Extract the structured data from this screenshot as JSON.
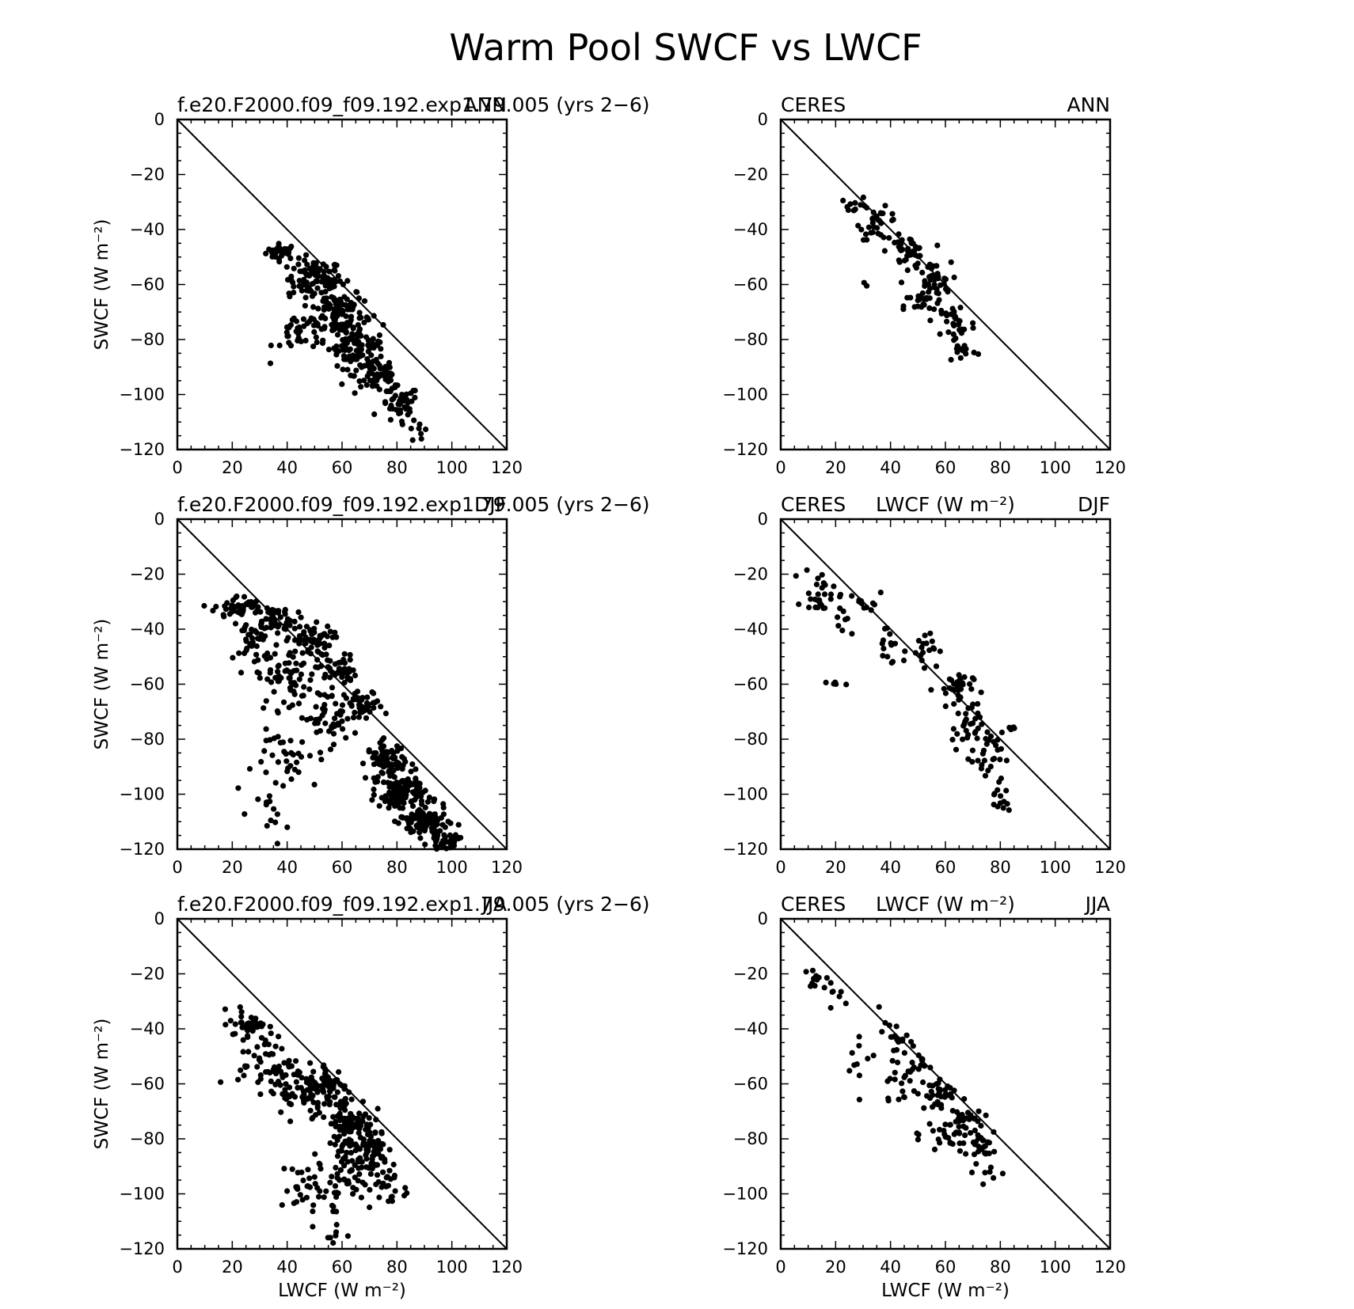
{
  "page_title": "Warm Pool SWCF vs LWCF",
  "chart_data": [
    {
      "type": "scatter",
      "left_string": "f.e20.F2000.f09_f09.192.exp1.79.005 (yrs 2−6)",
      "right_string": "ANN",
      "ylabel": "SWCF (W m⁻²)",
      "xlabel": "",
      "xlim": [
        0,
        120
      ],
      "ylim": [
        -120,
        0
      ],
      "xticks": [
        "0",
        "20",
        "40",
        "60",
        "80",
        "100",
        "120"
      ],
      "yticks": [
        "0",
        "−20",
        "−40",
        "−60",
        "−80",
        "−100",
        "−120"
      ],
      "reference_line": [
        [
          0,
          0
        ],
        [
          120,
          -120
        ]
      ],
      "clusters": [
        {
          "cx": 38,
          "cy": -48,
          "rx": 4,
          "ry": 2,
          "n": 30
        },
        {
          "cx": 50,
          "cy": -58,
          "rx": 7,
          "ry": 5,
          "n": 90
        },
        {
          "cx": 58,
          "cy": -70,
          "rx": 7,
          "ry": 7,
          "n": 110
        },
        {
          "cx": 65,
          "cy": -82,
          "rx": 7,
          "ry": 6,
          "n": 90
        },
        {
          "cx": 73,
          "cy": -93,
          "rx": 6,
          "ry": 5,
          "n": 60
        },
        {
          "cx": 81,
          "cy": -104,
          "rx": 5,
          "ry": 5,
          "n": 45
        },
        {
          "cx": 45,
          "cy": -78,
          "rx": 7,
          "ry": 6,
          "n": 35
        },
        {
          "cx": 88,
          "cy": -113,
          "rx": 3,
          "ry": 3,
          "n": 8
        }
      ]
    },
    {
      "type": "scatter",
      "left_string": "CERES",
      "right_string": "ANN",
      "ylabel": "",
      "xlabel": "",
      "xlim": [
        0,
        120
      ],
      "ylim": [
        -120,
        0
      ],
      "xticks": [
        "0",
        "20",
        "40",
        "60",
        "80",
        "100",
        "120"
      ],
      "yticks": [
        "0",
        "−20",
        "−40",
        "−60",
        "−80",
        "−100",
        "−120"
      ],
      "reference_line": [
        [
          0,
          0
        ],
        [
          120,
          -120
        ]
      ],
      "clusters": [
        {
          "cx": 27,
          "cy": -31,
          "rx": 4,
          "ry": 2,
          "n": 12
        },
        {
          "cx": 36,
          "cy": -38,
          "rx": 5,
          "ry": 4,
          "n": 30
        },
        {
          "cx": 46,
          "cy": -48,
          "rx": 5,
          "ry": 4,
          "n": 40
        },
        {
          "cx": 55,
          "cy": -59,
          "rx": 5,
          "ry": 5,
          "n": 40
        },
        {
          "cx": 52,
          "cy": -68,
          "rx": 5,
          "ry": 4,
          "n": 20
        },
        {
          "cx": 64,
          "cy": -74,
          "rx": 5,
          "ry": 6,
          "n": 30
        },
        {
          "cx": 66,
          "cy": -84,
          "rx": 4,
          "ry": 3,
          "n": 12
        },
        {
          "cx": 31,
          "cy": -60,
          "rx": 1,
          "ry": 1,
          "n": 2
        }
      ]
    },
    {
      "type": "scatter",
      "left_string": "f.e20.F2000.f09_f09.192.exp1.79.005 (yrs 2−6)",
      "right_string": "DJF",
      "ylabel": "SWCF (W m⁻²)",
      "xlabel": "",
      "xlim": [
        0,
        120
      ],
      "ylim": [
        -120,
        0
      ],
      "xticks": [
        "0",
        "20",
        "40",
        "60",
        "80",
        "100",
        "120"
      ],
      "yticks": [
        "0",
        "−20",
        "−40",
        "−60",
        "−80",
        "−100",
        "−120"
      ],
      "reference_line": [
        [
          0,
          0
        ],
        [
          120,
          -120
        ]
      ],
      "clusters": [
        {
          "cx": 22,
          "cy": -32,
          "rx": 6,
          "ry": 3,
          "n": 45
        },
        {
          "cx": 35,
          "cy": -36,
          "rx": 6,
          "ry": 4,
          "n": 55
        },
        {
          "cx": 48,
          "cy": -44,
          "rx": 6,
          "ry": 4,
          "n": 55
        },
        {
          "cx": 58,
          "cy": -55,
          "rx": 5,
          "ry": 4,
          "n": 45
        },
        {
          "cx": 68,
          "cy": -68,
          "rx": 5,
          "ry": 4,
          "n": 40
        },
        {
          "cx": 28,
          "cy": -45,
          "rx": 5,
          "ry": 6,
          "n": 35
        },
        {
          "cx": 40,
          "cy": -58,
          "rx": 8,
          "ry": 8,
          "n": 60
        },
        {
          "cx": 55,
          "cy": -72,
          "rx": 8,
          "ry": 7,
          "n": 50
        },
        {
          "cx": 42,
          "cy": -88,
          "rx": 10,
          "ry": 8,
          "n": 35
        },
        {
          "cx": 35,
          "cy": -108,
          "rx": 4,
          "ry": 7,
          "n": 12
        },
        {
          "cx": 76,
          "cy": -88,
          "rx": 5,
          "ry": 5,
          "n": 80
        },
        {
          "cx": 82,
          "cy": -100,
          "rx": 6,
          "ry": 5,
          "n": 110
        },
        {
          "cx": 90,
          "cy": -110,
          "rx": 6,
          "ry": 4,
          "n": 90
        },
        {
          "cx": 97,
          "cy": -117,
          "rx": 4,
          "ry": 2,
          "n": 40
        }
      ]
    },
    {
      "type": "scatter",
      "left_string": "CERES",
      "center_string": "LWCF (W m⁻²)",
      "right_string": "DJF",
      "ylabel": "",
      "xlabel": "",
      "xlim": [
        0,
        120
      ],
      "ylim": [
        -120,
        0
      ],
      "xticks": [
        "0",
        "20",
        "40",
        "60",
        "80",
        "100",
        "120"
      ],
      "yticks": [
        "0",
        "−20",
        "−40",
        "−60",
        "−80",
        "−100",
        "−120"
      ],
      "reference_line": [
        [
          0,
          0
        ],
        [
          120,
          -120
        ]
      ],
      "clusters": [
        {
          "cx": 14,
          "cy": -26,
          "rx": 4,
          "ry": 6,
          "n": 25
        },
        {
          "cx": 22,
          "cy": -34,
          "rx": 3,
          "ry": 6,
          "n": 12
        },
        {
          "cx": 32,
          "cy": -30,
          "rx": 3,
          "ry": 4,
          "n": 10
        },
        {
          "cx": 40,
          "cy": -46,
          "rx": 5,
          "ry": 6,
          "n": 15
        },
        {
          "cx": 52,
          "cy": -46,
          "rx": 4,
          "ry": 5,
          "n": 18
        },
        {
          "cx": 63,
          "cy": -62,
          "rx": 5,
          "ry": 5,
          "n": 30
        },
        {
          "cx": 68,
          "cy": -76,
          "rx": 4,
          "ry": 6,
          "n": 30
        },
        {
          "cx": 75,
          "cy": -86,
          "rx": 4,
          "ry": 6,
          "n": 25
        },
        {
          "cx": 80,
          "cy": -100,
          "rx": 3,
          "ry": 6,
          "n": 15
        },
        {
          "cx": 18,
          "cy": -60,
          "rx": 4,
          "ry": 2,
          "n": 5
        },
        {
          "cx": 84,
          "cy": -78,
          "rx": 2,
          "ry": 2,
          "n": 4
        }
      ]
    },
    {
      "type": "scatter",
      "left_string": "f.e20.F2000.f09_f09.192.exp1.79.005 (yrs 2−6)",
      "right_string": "JJA",
      "ylabel": "SWCF (W m⁻²)",
      "xlabel": "LWCF (W m⁻²)",
      "xlim": [
        0,
        120
      ],
      "ylim": [
        -120,
        0
      ],
      "xticks": [
        "0",
        "20",
        "40",
        "60",
        "80",
        "100",
        "120"
      ],
      "yticks": [
        "0",
        "−20",
        "−40",
        "−60",
        "−80",
        "−100",
        "−120"
      ],
      "reference_line": [
        [
          0,
          0
        ],
        [
          120,
          -120
        ]
      ],
      "clusters": [
        {
          "cx": 26,
          "cy": -38,
          "rx": 5,
          "ry": 4,
          "n": 40
        },
        {
          "cx": 32,
          "cy": -52,
          "rx": 7,
          "ry": 7,
          "n": 45
        },
        {
          "cx": 44,
          "cy": -62,
          "rx": 8,
          "ry": 7,
          "n": 55
        },
        {
          "cx": 55,
          "cy": -62,
          "rx": 5,
          "ry": 7,
          "n": 70
        },
        {
          "cx": 63,
          "cy": -74,
          "rx": 6,
          "ry": 7,
          "n": 90
        },
        {
          "cx": 70,
          "cy": -84,
          "rx": 5,
          "ry": 6,
          "n": 60
        },
        {
          "cx": 62,
          "cy": -92,
          "rx": 7,
          "ry": 6,
          "n": 45
        },
        {
          "cx": 50,
          "cy": -98,
          "rx": 9,
          "ry": 8,
          "n": 40
        },
        {
          "cx": 77,
          "cy": -98,
          "rx": 5,
          "ry": 6,
          "n": 25
        },
        {
          "cx": 55,
          "cy": -114,
          "rx": 5,
          "ry": 3,
          "n": 8
        }
      ]
    },
    {
      "type": "scatter",
      "left_string": "CERES",
      "center_string": "LWCF (W m⁻²)",
      "right_string": "JJA",
      "ylabel": "",
      "xlabel": "LWCF (W m⁻²)",
      "xlim": [
        0,
        120
      ],
      "ylim": [
        -120,
        0
      ],
      "xticks": [
        "0",
        "20",
        "40",
        "60",
        "80",
        "100",
        "120"
      ],
      "yticks": [
        "0",
        "−20",
        "−40",
        "−60",
        "−80",
        "−100",
        "−120"
      ],
      "reference_line": [
        [
          0,
          0
        ],
        [
          120,
          -120
        ]
      ],
      "clusters": [
        {
          "cx": 13,
          "cy": -22,
          "rx": 3,
          "ry": 3,
          "n": 12
        },
        {
          "cx": 20,
          "cy": -30,
          "rx": 3,
          "ry": 3,
          "n": 6
        },
        {
          "cx": 28,
          "cy": -50,
          "rx": 4,
          "ry": 10,
          "n": 10
        },
        {
          "cx": 40,
          "cy": -42,
          "rx": 3,
          "ry": 4,
          "n": 12
        },
        {
          "cx": 48,
          "cy": -52,
          "rx": 5,
          "ry": 6,
          "n": 25
        },
        {
          "cx": 57,
          "cy": -64,
          "rx": 5,
          "ry": 5,
          "n": 35
        },
        {
          "cx": 66,
          "cy": -74,
          "rx": 5,
          "ry": 5,
          "n": 35
        },
        {
          "cx": 73,
          "cy": -83,
          "rx": 4,
          "ry": 4,
          "n": 20
        },
        {
          "cx": 58,
          "cy": -79,
          "rx": 8,
          "ry": 3,
          "n": 20
        },
        {
          "cx": 76,
          "cy": -92,
          "rx": 4,
          "ry": 3,
          "n": 8
        },
        {
          "cx": 42,
          "cy": -62,
          "rx": 6,
          "ry": 6,
          "n": 12
        }
      ]
    }
  ]
}
